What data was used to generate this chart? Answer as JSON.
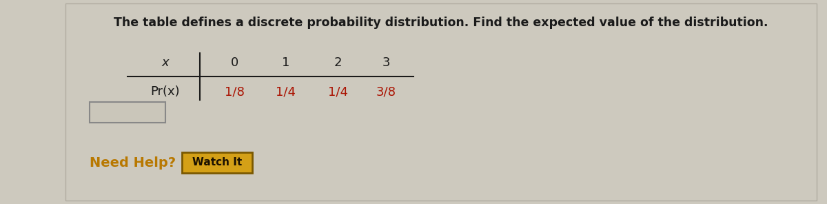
{
  "title": "The table defines a discrete probability distribution. Find the expected value of the distribution.",
  "title_fontsize": 12.5,
  "title_color": "#1a1a1a",
  "bg_color": "#cdc9be",
  "panel_bg": "#d8d4c8",
  "x_values": [
    "x",
    "0",
    "1",
    "2",
    "3"
  ],
  "pr_values": [
    "Pr(x)",
    "1/8",
    "1/4",
    "1/4",
    "3/8"
  ],
  "table_text_color": "#1a1a1a",
  "pr_values_color": "#aa1100",
  "need_help_color": "#b87800",
  "need_help_text": "Need Help?",
  "watch_it_text": "Watch It",
  "watch_btn_bg": "#d4a017",
  "watch_btn_border": "#7a5800",
  "input_box_border": "#888888",
  "input_box_bg": "#cac6ba"
}
